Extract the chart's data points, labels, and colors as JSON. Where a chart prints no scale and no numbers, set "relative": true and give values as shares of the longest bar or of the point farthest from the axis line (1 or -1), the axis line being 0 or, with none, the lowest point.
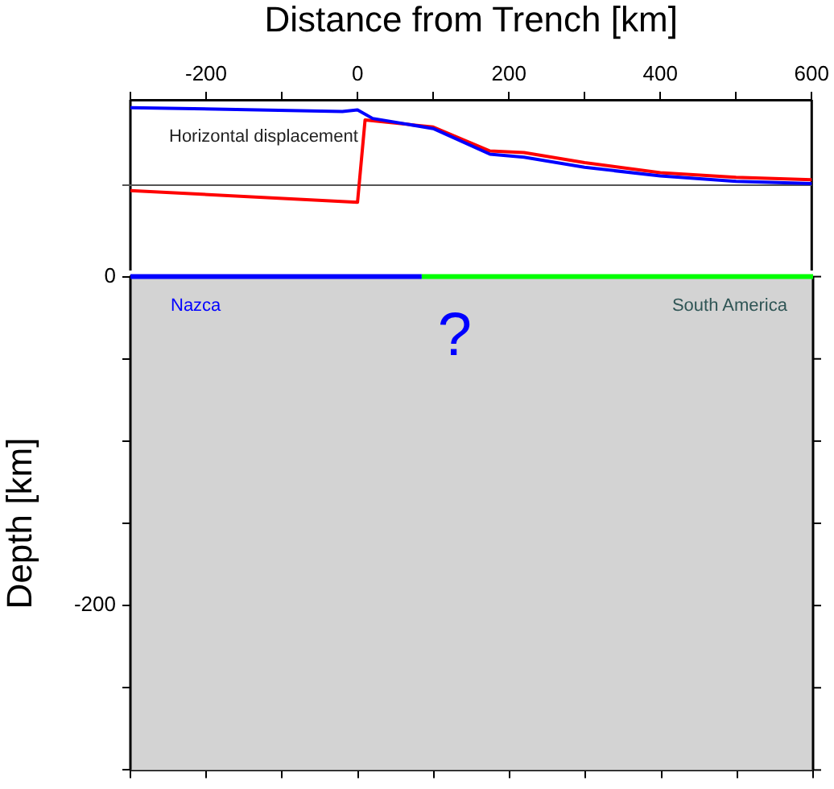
{
  "chart_data": [
    {
      "type": "line",
      "xlabel": "Distance from Trench [km]",
      "relative": true,
      "xlim": [
        -300,
        600
      ],
      "xticks": [
        {
          "value": -300,
          "label": null
        },
        -200,
        {
          "value": -100,
          "label": null
        },
        0,
        {
          "value": 100,
          "label": null
        },
        200,
        {
          "value": 300,
          "label": null
        },
        400,
        {
          "value": 500,
          "label": null
        },
        600
      ],
      "tick_labels": "x",
      "annotations": [
        "Horizontal displacement"
      ],
      "series": [
        {
          "color": "#0000ff",
          "x": [
            -300,
            -20,
            0,
            20,
            100,
            175,
            220,
            300,
            400,
            500,
            600
          ],
          "values": [
            1.0,
            0.95,
            0.97,
            0.86,
            0.73,
            0.4,
            0.36,
            0.23,
            0.12,
            0.05,
            0.02
          ]
        },
        {
          "color": "#ff0000",
          "x": [
            -300,
            0,
            10,
            100,
            175,
            220,
            300,
            400,
            500,
            600
          ],
          "values": [
            -0.07,
            -0.22,
            0.84,
            0.75,
            0.44,
            0.42,
            0.29,
            0.16,
            0.1,
            0.07
          ]
        }
      ]
    },
    {
      "type": "line",
      "ylabel": "Depth [km]",
      "xlim": [
        -300,
        600
      ],
      "xticks": [
        {
          "value": -300,
          "label": null
        },
        {
          "value": -200,
          "label": null
        },
        {
          "value": -100,
          "label": null
        },
        {
          "value": 0,
          "label": null
        },
        {
          "value": 100,
          "label": null
        },
        {
          "value": 200,
          "label": null
        },
        {
          "value": 300,
          "label": null
        },
        {
          "value": 400,
          "label": null
        },
        {
          "value": 500,
          "label": null
        },
        {
          "value": 600,
          "label": null
        }
      ],
      "ylim": [
        -300,
        0
      ],
      "yticks": [
        {
          "value": -300,
          "label": null
        },
        {
          "value": -250,
          "label": null
        },
        -200,
        {
          "value": -150,
          "label": null
        },
        {
          "value": -100,
          "label": null
        },
        {
          "value": -50,
          "label": null
        },
        0
      ],
      "tick_labels": "y",
      "bands": [
        {
          "axis": "y",
          "from": -300,
          "to": 0,
          "color": "#d3d3d3"
        }
      ],
      "annotations": [
        "?"
      ],
      "series": [
        {
          "name": "Nazca",
          "color": "#0000ff",
          "x": [
            -300,
            84
          ],
          "values": [
            0,
            0
          ]
        },
        {
          "name": "South America",
          "color": "#00ff00",
          "x": [
            84,
            600
          ],
          "values": [
            0,
            0
          ]
        }
      ]
    }
  ]
}
